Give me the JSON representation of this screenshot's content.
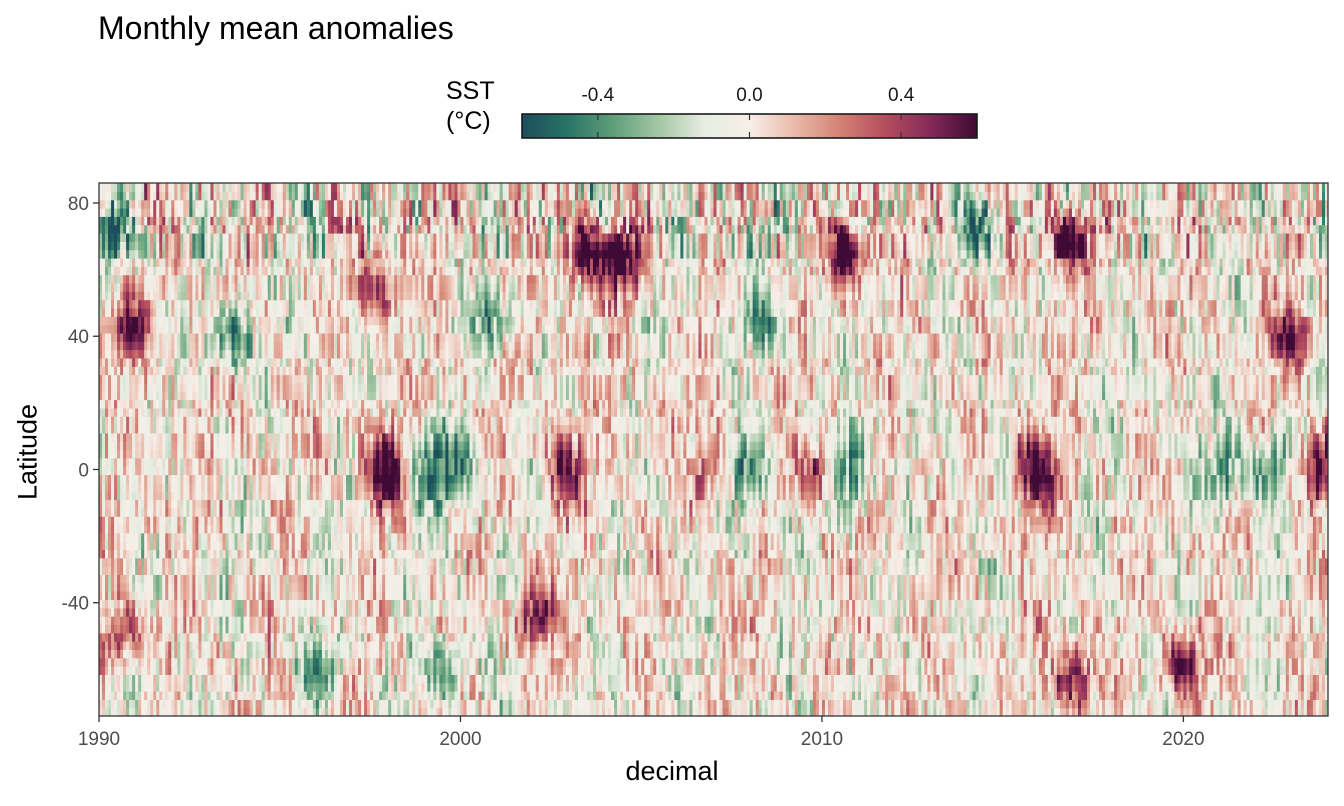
{
  "chart_data": {
    "type": "heatmap",
    "title": "Monthly mean anomalies",
    "xlabel": "decimal",
    "ylabel": "Latitude",
    "x_range": [
      1990,
      2024
    ],
    "y_range": [
      -74,
      86
    ],
    "x_ticks": [
      1990,
      2000,
      2010,
      2020
    ],
    "x_tick_labels": [
      "1990",
      "2000",
      "2010",
      "2020"
    ],
    "y_ticks": [
      80,
      40,
      0,
      -40
    ],
    "y_tick_labels": [
      "80",
      "40",
      "0",
      "-40"
    ],
    "grid": false,
    "legend": {
      "title_line1": "SST",
      "title_line2": "(°C)",
      "position": "top",
      "limits": [
        -0.6,
        0.6
      ],
      "ticks": [
        -0.4,
        0.0,
        0.4
      ],
      "tick_labels": [
        "-0.4",
        "0.0",
        "0.4"
      ],
      "colormap": [
        "#1c4e5c",
        "#2a7466",
        "#5f9e7b",
        "#a4c6a3",
        "#e6ede2",
        "#f7efe9",
        "#e9b9a9",
        "#d28172",
        "#b44d5f",
        "#822a59",
        "#3f0a35"
      ]
    },
    "anomaly_features": [
      {
        "lat": 42,
        "year": 1990.8,
        "value": 0.5
      },
      {
        "lat": -48,
        "year": 1990.6,
        "value": 0.5
      },
      {
        "lat": 70,
        "year": 1990.5,
        "value": -0.4
      },
      {
        "lat": 0,
        "year": 1997.9,
        "value": 0.7
      },
      {
        "lat": 0,
        "year": 1999.8,
        "value": -0.45
      },
      {
        "lat": 55,
        "year": 1997.8,
        "value": 0.5
      },
      {
        "lat": 40,
        "year": 1993.7,
        "value": -0.45
      },
      {
        "lat": 62,
        "year": 2004.5,
        "value": 0.6
      },
      {
        "lat": 64,
        "year": 2003.4,
        "value": 0.55
      },
      {
        "lat": 0,
        "year": 2007.9,
        "value": -0.5
      },
      {
        "lat": 0,
        "year": 2010.8,
        "value": -0.5
      },
      {
        "lat": 0,
        "year": 2009.8,
        "value": 0.4
      },
      {
        "lat": 64,
        "year": 2010.7,
        "value": 0.55
      },
      {
        "lat": 0,
        "year": 2015.9,
        "value": 0.7
      },
      {
        "lat": -62,
        "year": 2017.0,
        "value": 0.55
      },
      {
        "lat": -58,
        "year": 2020.0,
        "value": 0.55
      },
      {
        "lat": 0,
        "year": 2023.8,
        "value": 0.6
      },
      {
        "lat": 40,
        "year": 2023.0,
        "value": 0.55
      },
      {
        "lat": 68,
        "year": 2016.8,
        "value": 0.55
      },
      {
        "lat": 45,
        "year": 2001.0,
        "value": -0.4
      },
      {
        "lat": 0,
        "year": 2021.1,
        "value": -0.4
      },
      {
        "lat": 0,
        "year": 2022.4,
        "value": -0.4
      },
      {
        "lat": 0,
        "year": 1999.0,
        "value": -0.35
      },
      {
        "lat": 0,
        "year": 2002.9,
        "value": 0.45
      },
      {
        "lat": -44,
        "year": 2002.1,
        "value": 0.5
      },
      {
        "lat": -60,
        "year": 1996.1,
        "value": -0.4
      },
      {
        "lat": -60,
        "year": 1999.6,
        "value": -0.4
      },
      {
        "lat": 72,
        "year": 2014.5,
        "value": -0.35
      },
      {
        "lat": 0,
        "year": 2006.9,
        "value": 0.35
      },
      {
        "lat": 45,
        "year": 2008.2,
        "value": -0.35
      }
    ]
  }
}
